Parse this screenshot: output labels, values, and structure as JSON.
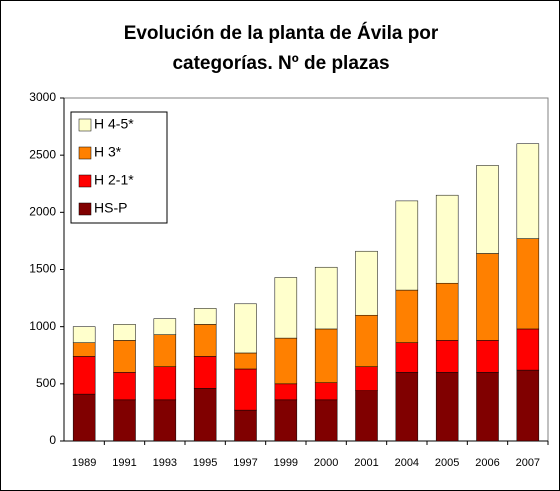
{
  "chart_data": {
    "type": "stacked_bar",
    "title": "Evolución de la planta de Ávila por categorías. Nº de plazas",
    "categories": [
      "1989",
      "1991",
      "1993",
      "1995",
      "1997",
      "1999",
      "2000",
      "2001",
      "2004",
      "2005",
      "2006",
      "2007"
    ],
    "series": [
      {
        "name": "HS-P",
        "color": "#800000",
        "values": [
          410,
          360,
          360,
          460,
          270,
          360,
          360,
          440,
          600,
          600,
          600,
          620
        ]
      },
      {
        "name": "H 2-1*",
        "color": "#ff0000",
        "values": [
          330,
          240,
          290,
          280,
          360,
          140,
          150,
          210,
          260,
          280,
          280,
          360
        ]
      },
      {
        "name": "H 3*",
        "color": "#ff8000",
        "values": [
          120,
          280,
          280,
          280,
          140,
          400,
          470,
          450,
          460,
          500,
          760,
          790
        ]
      },
      {
        "name": "H 4-5*",
        "color": "#ffffcc",
        "values": [
          140,
          140,
          140,
          140,
          430,
          530,
          540,
          560,
          780,
          770,
          770,
          830
        ]
      }
    ],
    "ylim": [
      0,
      3000
    ],
    "yticks": [
      0,
      500,
      1000,
      1500,
      2000,
      2500,
      3000
    ],
    "grid": false,
    "legend": "upper left"
  }
}
